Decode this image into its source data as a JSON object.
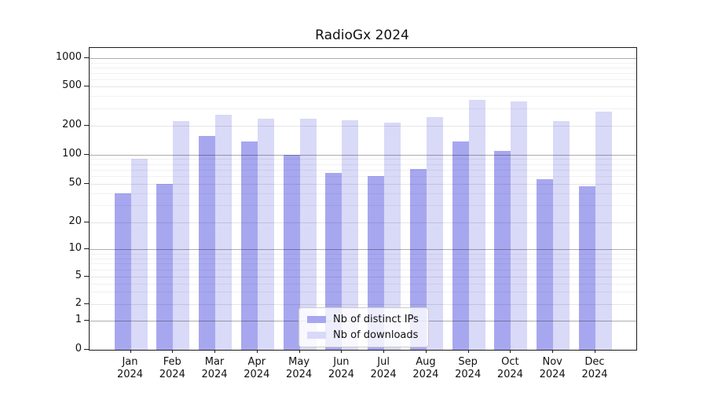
{
  "chart_data": {
    "type": "bar",
    "title": "RadioGx 2024",
    "yscale": "symlog",
    "grid": true,
    "ylim": [
      0,
      1300
    ],
    "yticks": [
      0,
      1,
      2,
      5,
      10,
      20,
      50,
      100,
      200,
      500,
      1000
    ],
    "minor_yticks": [
      3,
      4,
      6,
      7,
      8,
      9,
      30,
      40,
      60,
      70,
      80,
      90,
      300,
      400,
      600,
      700,
      800,
      900
    ],
    "categories": [
      {
        "month": "Jan",
        "year": "2024"
      },
      {
        "month": "Feb",
        "year": "2024"
      },
      {
        "month": "Mar",
        "year": "2024"
      },
      {
        "month": "Apr",
        "year": "2024"
      },
      {
        "month": "May",
        "year": "2024"
      },
      {
        "month": "Jun",
        "year": "2024"
      },
      {
        "month": "Jul",
        "year": "2024"
      },
      {
        "month": "Aug",
        "year": "2024"
      },
      {
        "month": "Sep",
        "year": "2024"
      },
      {
        "month": "Oct",
        "year": "2024"
      },
      {
        "month": "Nov",
        "year": "2024"
      },
      {
        "month": "Dec",
        "year": "2024"
      }
    ],
    "series": [
      {
        "name": "Nb of distinct IPs",
        "color": "#a7a7f0",
        "values": [
          40,
          50,
          155,
          138,
          100,
          65,
          60,
          71,
          138,
          109,
          56,
          47
        ]
      },
      {
        "name": "Nb of downloads",
        "color": "#d9d9f8",
        "values": [
          91,
          222,
          258,
          237,
          237,
          227,
          216,
          243,
          370,
          354,
          224,
          278
        ]
      }
    ],
    "legend": {
      "position": "lower center",
      "entries": [
        "Nb of distinct IPs",
        "Nb of downloads"
      ]
    }
  },
  "colors": {
    "background": "#ffffff",
    "spine": "#1c1c1c",
    "decade_gridline": "rgba(0,0,0,0.32)",
    "major_gridline": "rgba(0,0,0,0.10)",
    "minor_gridline": "rgba(0,0,0,0.055)"
  }
}
